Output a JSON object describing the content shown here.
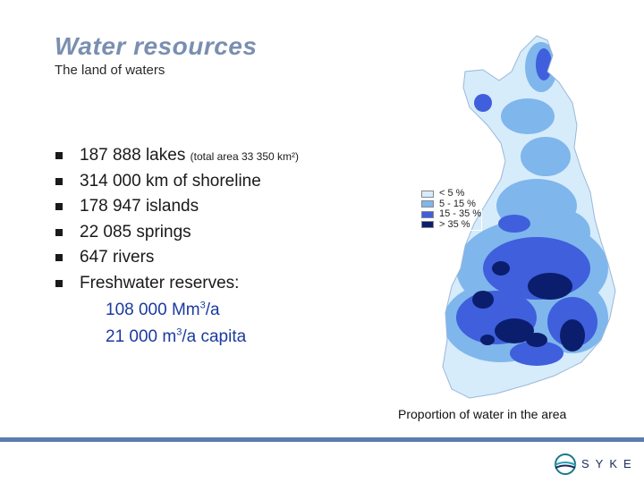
{
  "header": {
    "title": "Water resources",
    "subtitle": "The land of waters"
  },
  "facts": [
    {
      "main": "187 888 lakes",
      "note": "(total area 33 350 km²)"
    },
    {
      "main": "314 000 km of shoreline",
      "note": ""
    },
    {
      "main": "178 947 islands",
      "note": ""
    },
    {
      "main": "22 085 springs",
      "note": ""
    },
    {
      "main": "647 rivers",
      "note": ""
    },
    {
      "main": "Freshwater reserves:",
      "note": ""
    }
  ],
  "reserves": [
    {
      "value": "108 000 Mm",
      "sup": "3",
      "unit": "/a"
    },
    {
      "value": "21 000 m",
      "sup": "3",
      "unit": "/a capita"
    }
  ],
  "map": {
    "caption": "Proportion of water in the area",
    "legend": [
      {
        "label": "< 5 %",
        "color": "#d6ecfb"
      },
      {
        "label": "5 - 15 %",
        "color": "#7fb6ec"
      },
      {
        "label": "15 - 35 %",
        "color": "#3f5fdc"
      },
      {
        "label": "> 35 %",
        "color": "#0b1e6e"
      }
    ]
  },
  "footer": {
    "logo_text": "SYKE",
    "accent": "#5b7cae"
  }
}
